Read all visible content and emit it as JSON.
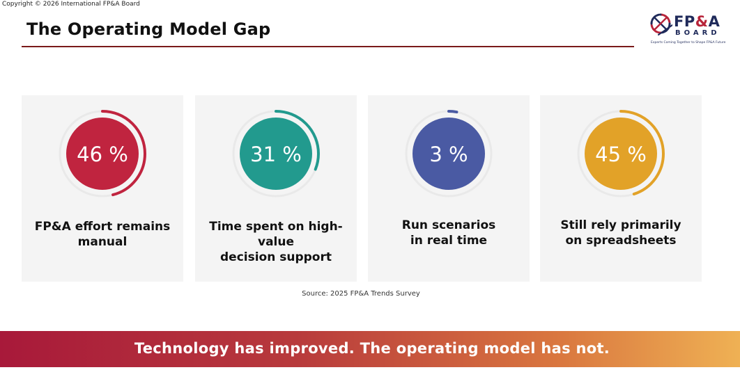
{
  "copyright": "Copyright © 2026 International FP&A Board",
  "title": "The Operating Model Gap",
  "logo": {
    "brand_prefix": "FP",
    "brand_amp": "&",
    "brand_suffix": "A",
    "board": "BOARD",
    "tagline": "Experts Coming Together to Shape FP&A Future"
  },
  "stats": [
    {
      "value": "46 %",
      "percent": 46,
      "label_lines": [
        "FP&A effort remains",
        "manual"
      ],
      "color": "#c0243f"
    },
    {
      "value": "31 %",
      "percent": 31,
      "label_lines": [
        "Time spent on high-value",
        "decision support"
      ],
      "color": "#229a8e"
    },
    {
      "value": "3 %",
      "percent": 3,
      "label_lines": [
        "Run scenarios",
        "in real time"
      ],
      "color": "#4a5aa3"
    },
    {
      "value": "45 %",
      "percent": 45,
      "label_lines": [
        "Still rely primarily",
        "on spreadsheets"
      ],
      "color": "#e2a228"
    }
  ],
  "source": "Source: 2025 FP&A Trends Survey",
  "banner": "Technology has improved. The operating model has not."
}
